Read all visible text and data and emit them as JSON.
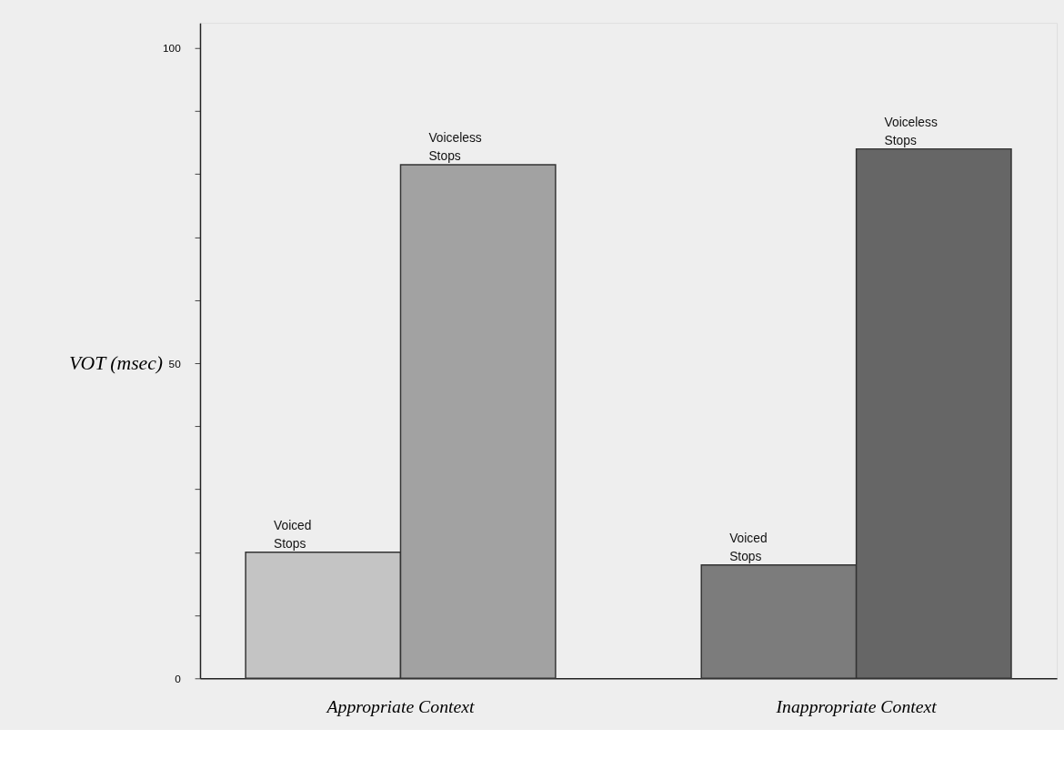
{
  "chart_data": {
    "type": "bar",
    "xlabel": null,
    "ylabel": "VOT (msec)",
    "categories": [
      "Appropriate Context",
      "Inappropriate Context"
    ],
    "series": [
      {
        "name": "Voiced Stops",
        "colors": [
          "#c4c4c4",
          "#7c7c7c"
        ],
        "values": [
          20,
          18
        ]
      },
      {
        "name": "Voiceless Stops",
        "colors": [
          "#a2a2a2",
          "#666666"
        ],
        "values": [
          81.5,
          84
        ]
      }
    ],
    "ylim": [
      0,
      104
    ],
    "yticks": [
      0,
      {
        "value": 10,
        "label": null
      },
      {
        "value": 20,
        "label": null
      },
      {
        "value": 30,
        "label": null
      },
      {
        "value": 40,
        "label": null
      },
      50,
      {
        "value": 60,
        "label": null
      },
      {
        "value": 70,
        "label": null
      },
      {
        "value": 80,
        "label": null
      },
      {
        "value": 90,
        "label": null
      },
      100
    ],
    "grid": false
  }
}
